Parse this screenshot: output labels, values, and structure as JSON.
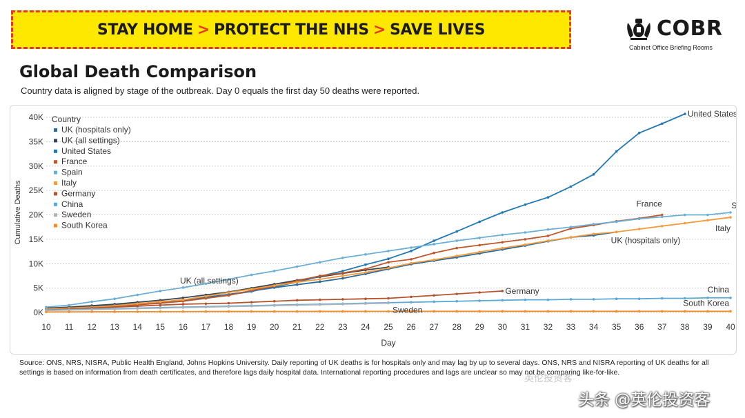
{
  "banner": {
    "part1": "STAY HOME",
    "part2": "PROTECT THE NHS",
    "part3": "SAVE LIVES",
    "separator": ">",
    "bg_color": "#ffe800",
    "accent_color": "#e53a22"
  },
  "logo": {
    "name": "COBR",
    "subtitle": "Cabinet Office Briefing Rooms",
    "icon": "royal-crest-icon"
  },
  "header": {
    "title": "Global Death Comparison",
    "subtitle": "Country data is aligned by stage of the outbreak. Day 0 equals the first day 50 deaths were reported."
  },
  "chart_data": {
    "type": "line",
    "title": "Global Death Comparison",
    "xlabel": "Day",
    "ylabel": "Cumulative Deaths",
    "xlim": [
      10,
      40
    ],
    "ylim": [
      0,
      41000
    ],
    "x_ticks": [
      10,
      11,
      12,
      13,
      14,
      15,
      16,
      17,
      18,
      19,
      20,
      21,
      22,
      23,
      24,
      25,
      26,
      27,
      28,
      29,
      30,
      31,
      32,
      33,
      34,
      35,
      36,
      37,
      38,
      39,
      40
    ],
    "y_ticks": [
      0,
      5000,
      10000,
      15000,
      20000,
      25000,
      30000,
      35000,
      40000
    ],
    "y_tick_labels": [
      "0K",
      "5K",
      "10K",
      "15K",
      "20K",
      "25K",
      "30K",
      "35K",
      "40K"
    ],
    "grid": true,
    "legend_title": "Country",
    "legend_position": "top-left",
    "series": [
      {
        "name": "UK (hospitals only)",
        "label": "UK (hospitals only)",
        "color": "#2a6b9c",
        "x_start": 10,
        "values": [
          800,
          1000,
          1200,
          1500,
          1800,
          2100,
          2600,
          3100,
          3700,
          4400,
          5100,
          5700,
          6300,
          7000,
          7900,
          8900,
          9900,
          10600,
          11300,
          12100,
          12900,
          13700,
          14600,
          15400,
          15800,
          16500
        ]
      },
      {
        "name": "UK (all settings)",
        "label": "UK (all settings)",
        "color": "#3a4752",
        "x_start": 10,
        "values": [
          900,
          1100,
          1400,
          1700,
          2100,
          2500,
          3000,
          3600,
          4200,
          5000,
          5800,
          6600,
          7300,
          8000,
          8700,
          9300
        ]
      },
      {
        "name": "United States",
        "label": "United States",
        "color": "#1f77b4",
        "x_start": 10,
        "values": [
          600,
          800,
          1000,
          1300,
          1600,
          1900,
          2400,
          2900,
          3600,
          4300,
          5300,
          6200,
          7400,
          8500,
          9800,
          11000,
          12600,
          14700,
          16600,
          18600,
          20500,
          22100,
          23600,
          25800,
          28300,
          33000,
          36800,
          38700,
          40700
        ]
      },
      {
        "name": "France",
        "label": "France",
        "color": "#c0562a",
        "x_start": 10,
        "values": [
          600,
          800,
          1000,
          1300,
          1600,
          1900,
          2300,
          2900,
          3500,
          4500,
          5400,
          6500,
          7500,
          8100,
          8900,
          10300,
          10900,
          12200,
          13200,
          13800,
          14400,
          15000,
          15700,
          17200,
          17900,
          18700,
          19300,
          20000
        ]
      },
      {
        "name": "Spain",
        "label": "Spain",
        "color": "#6baed6",
        "x_start": 10,
        "values": [
          1100,
          1500,
          2200,
          2800,
          3600,
          4400,
          5100,
          5900,
          6800,
          7700,
          8500,
          9400,
          10300,
          11200,
          11900,
          12600,
          13300,
          14000,
          14700,
          15300,
          15900,
          16400,
          17000,
          17500,
          18100,
          18600,
          19200,
          19600,
          20000,
          20000,
          20500
        ]
      },
      {
        "name": "Italy",
        "label": "Italy",
        "color": "#f39c3d",
        "x_start": 10,
        "values": [
          700,
          900,
          1100,
          1400,
          1800,
          2200,
          2600,
          3300,
          4100,
          4800,
          5500,
          6200,
          6800,
          7500,
          8200,
          9100,
          10100,
          10800,
          11600,
          12400,
          13200,
          13900,
          14700,
          15400,
          16100,
          16500,
          17100,
          17700,
          18300,
          18900,
          19500
        ]
      },
      {
        "name": "Germany",
        "label": "Germany",
        "color": "#b5532c",
        "x_start": 10,
        "values": [
          500,
          700,
          900,
          1100,
          1300,
          1500,
          1700,
          1800,
          1900,
          2100,
          2300,
          2500,
          2600,
          2700,
          2800,
          2900,
          3200,
          3500,
          3800,
          4100,
          4400
        ]
      },
      {
        "name": "China",
        "label": "China",
        "color": "#5aa9d6",
        "x_start": 10,
        "values": [
          500,
          600,
          700,
          800,
          900,
          1000,
          1100,
          1200,
          1300,
          1400,
          1500,
          1600,
          1700,
          1800,
          1900,
          2000,
          2100,
          2200,
          2300,
          2400,
          2500,
          2600,
          2600,
          2700,
          2700,
          2800,
          2800,
          2900,
          2900,
          3000,
          3000
        ]
      },
      {
        "name": "Sweden",
        "label": "Sweden",
        "color": "#a9b4bd",
        "x_start": 10,
        "values": [
          400,
          500,
          600,
          700,
          800,
          900,
          1000,
          1100,
          1200,
          1300,
          1400,
          1500,
          1600,
          1700,
          1800,
          1900
        ]
      },
      {
        "name": "South Korea",
        "label": "South Korea",
        "color": "#f28e2b",
        "x_start": 10,
        "values": [
          100,
          120,
          140,
          150,
          160,
          170,
          180,
          190,
          200,
          200,
          210,
          210,
          220,
          220,
          230,
          230,
          230,
          240,
          240,
          240,
          240,
          240,
          240,
          240,
          240,
          240,
          240,
          240,
          240,
          240,
          240
        ]
      }
    ],
    "annotations": [
      {
        "text": "United States",
        "series": "United States"
      },
      {
        "text": "France",
        "series": "France"
      },
      {
        "text": "Spain",
        "series": "Spain"
      },
      {
        "text": "Italy",
        "series": "Italy"
      },
      {
        "text": "UK (hospitals only)",
        "series": "UK (hospitals only)"
      },
      {
        "text": "UK (all settings)",
        "series": "UK (all settings)"
      },
      {
        "text": "Germany",
        "series": "Germany"
      },
      {
        "text": "China",
        "series": "China"
      },
      {
        "text": "Sweden",
        "series": "Sweden"
      },
      {
        "text": "South Korea",
        "series": "South Korea"
      }
    ]
  },
  "footer": {
    "source": "Source: ONS, NRS, NISRA, Public Health England, Johns Hopkins University. Daily reporting of UK deaths is for hospitals only and may lag by up to several days. ONS, NRS and NISRA reporting of UK deaths for all settings is based on information from death certificates, and therefore lags daily hospital data. International reporting procedures and lags are unclear so may not be comparing like-for-like."
  },
  "watermark": {
    "text": "头条 @英伦投资客",
    "faint_text": "英伦投资客"
  }
}
